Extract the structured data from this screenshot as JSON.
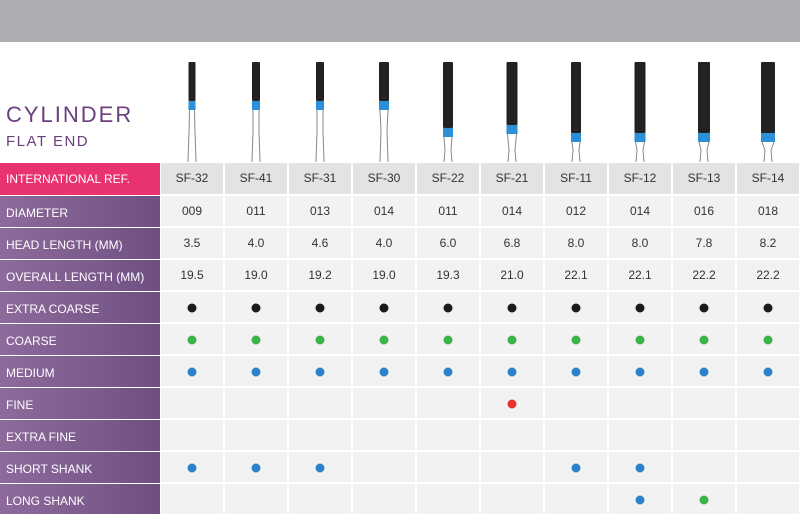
{
  "header": {
    "title": "CYLINDER",
    "subtitle": "FLAT END"
  },
  "table": {
    "header_label": "INTERNATIONAL REF.",
    "refs": [
      "SF-32",
      "SF-41",
      "SF-31",
      "SF-30",
      "SF-22",
      "SF-21",
      "SF-11",
      "SF-12",
      "SF-13",
      "SF-14"
    ],
    "rows": [
      {
        "label": "DIAMETER",
        "values": [
          "009",
          "011",
          "013",
          "014",
          "011",
          "014",
          "012",
          "014",
          "016",
          "018"
        ]
      },
      {
        "label": "HEAD LENGTH (MM)",
        "values": [
          "3.5",
          "4.0",
          "4.6",
          "4.0",
          "6.0",
          "6.8",
          "8.0",
          "8.0",
          "7.8",
          "8.2"
        ]
      },
      {
        "label": "OVERALL LENGTH (MM)",
        "values": [
          "19.5",
          "19.0",
          "19.2",
          "19.0",
          "19.3",
          "21.0",
          "22.1",
          "22.1",
          "22.2",
          "22.2"
        ]
      },
      {
        "label": "EXTRA COARSE",
        "dots": [
          "#1a1a1a",
          "#1a1a1a",
          "#1a1a1a",
          "#1a1a1a",
          "#1a1a1a",
          "#1a1a1a",
          "#1a1a1a",
          "#1a1a1a",
          "#1a1a1a",
          "#1a1a1a"
        ]
      },
      {
        "label": "COARSE",
        "dots": [
          "#3bb54a",
          "#3bb54a",
          "#3bb54a",
          "#3bb54a",
          "#3bb54a",
          "#3bb54a",
          "#3bb54a",
          "#3bb54a",
          "#3bb54a",
          "#3bb54a"
        ]
      },
      {
        "label": "MEDIUM",
        "dots": [
          "#2f80c8",
          "#2f80c8",
          "#2f80c8",
          "#2f80c8",
          "#2f80c8",
          "#2f80c8",
          "#2f80c8",
          "#2f80c8",
          "#2f80c8",
          "#2f80c8"
        ]
      },
      {
        "label": "FINE",
        "dots": [
          null,
          null,
          null,
          null,
          null,
          "#e8322b",
          null,
          null,
          null,
          null
        ]
      },
      {
        "label": "EXTRA FINE",
        "dots": [
          null,
          null,
          null,
          null,
          null,
          null,
          null,
          null,
          null,
          null
        ]
      },
      {
        "label": "SHORT SHANK",
        "dots": [
          "#2f80c8",
          "#2f80c8",
          "#2f80c8",
          null,
          null,
          null,
          "#2f80c8",
          "#2f80c8",
          null,
          null
        ]
      },
      {
        "label": "LONG SHANK",
        "dots": [
          null,
          null,
          null,
          null,
          null,
          null,
          null,
          "#2f80c8",
          "#3bb54a",
          null
        ]
      }
    ]
  }
}
